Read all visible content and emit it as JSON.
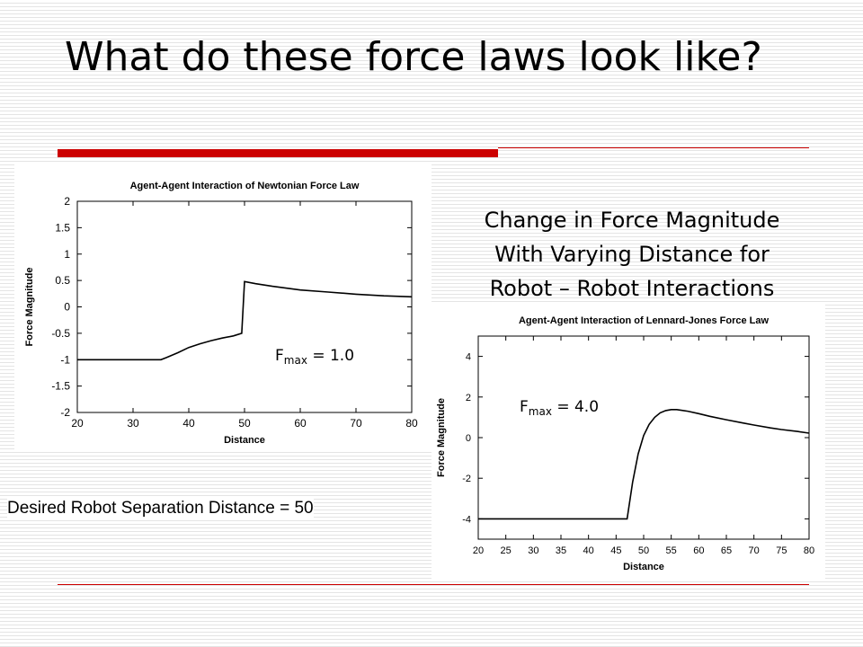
{
  "slide": {
    "title": "What do these force laws look like?",
    "heading_lines": [
      "Change in Force Magnitude",
      "With Varying Distance for",
      "Robot – Robot Interactions"
    ],
    "desired_note": "Desired Robot Separation Distance = 50",
    "fmax_newton": {
      "label": "F",
      "sub": "max",
      "value": " = 1.0"
    },
    "fmax_lj": {
      "label": "F",
      "sub": "max",
      "value": " = 4.0"
    },
    "colors": {
      "accent": "#cc0000",
      "line": "#000000"
    }
  },
  "chart_data": [
    {
      "type": "line",
      "title": "Agent-Agent Interaction of Newtonian Force Law",
      "xlabel": "Distance",
      "ylabel": "Force Magnitude",
      "xlim": [
        20,
        80
      ],
      "ylim": [
        -2,
        2
      ],
      "xticks": [
        "20",
        "30",
        "40",
        "50",
        "60",
        "70",
        "80"
      ],
      "yticks": [
        "2",
        "1.5",
        "1",
        "0.5",
        "0",
        "-0.5",
        "-1",
        "-1.5",
        "-2"
      ],
      "series": [
        {
          "x": [
            20,
            35,
            36,
            38,
            40,
            42,
            44,
            46,
            48,
            49.5,
            50,
            52,
            55,
            60,
            65,
            70,
            75,
            80
          ],
          "y": [
            -1,
            -1,
            -0.96,
            -0.87,
            -0.77,
            -0.7,
            -0.64,
            -0.59,
            -0.55,
            -0.5,
            0.48,
            0.44,
            0.39,
            0.32,
            0.28,
            0.24,
            0.21,
            0.19
          ]
        }
      ]
    },
    {
      "type": "line",
      "title": "Agent-Agent Interaction of Lennard-Jones Force Law",
      "xlabel": "Distance",
      "ylabel": "Force Magnitude",
      "xlim": [
        20,
        80
      ],
      "ylim": [
        -5,
        5
      ],
      "xticks": [
        "20",
        "25",
        "30",
        "35",
        "40",
        "45",
        "50",
        "55",
        "60",
        "65",
        "70",
        "75",
        "80"
      ],
      "yticks": [
        "4",
        "2",
        "0",
        "-2",
        "-4"
      ],
      "series": [
        {
          "x": [
            20,
            47,
            48,
            49,
            50,
            51,
            52,
            53,
            54,
            55,
            56,
            58,
            60,
            62,
            65,
            68,
            70,
            73,
            75,
            78,
            80
          ],
          "y": [
            -4,
            -4,
            -2.2,
            -0.8,
            0.1,
            0.65,
            1.0,
            1.22,
            1.33,
            1.38,
            1.38,
            1.3,
            1.18,
            1.05,
            0.88,
            0.72,
            0.62,
            0.48,
            0.4,
            0.3,
            0.22
          ]
        }
      ]
    }
  ]
}
